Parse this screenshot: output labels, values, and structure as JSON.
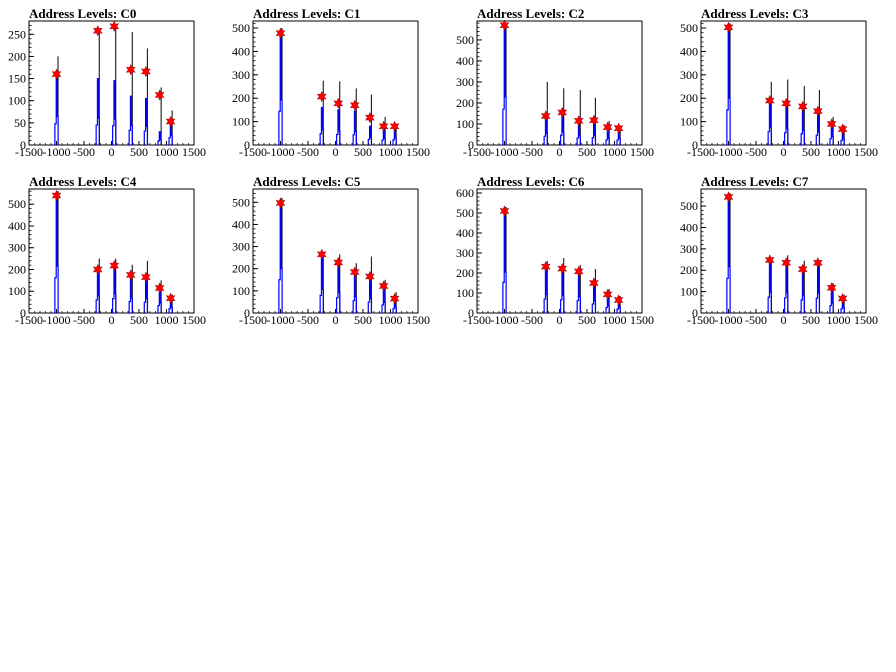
{
  "chart_data": [
    {
      "type": "histogram",
      "title": "Address Levels: C0",
      "xlim": [
        -1500,
        1500
      ],
      "ylim": [
        0,
        280
      ],
      "xticks": [
        -1500,
        -1000,
        -500,
        0,
        500,
        1000,
        1500
      ],
      "yticks": [
        0,
        50,
        100,
        150,
        200,
        250
      ],
      "peaks": [
        {
          "x": -1000,
          "top": 200,
          "body": 160,
          "star": 160
        },
        {
          "x": -250,
          "top": 260,
          "body": 150,
          "star": 258
        },
        {
          "x": 50,
          "top": 270,
          "body": 145,
          "star": 268
        },
        {
          "x": 350,
          "top": 255,
          "body": 110,
          "star": 170
        },
        {
          "x": 625,
          "top": 218,
          "body": 105,
          "star": 166
        },
        {
          "x": 875,
          "top": 130,
          "body": 30,
          "star": 113
        },
        {
          "x": 1075,
          "top": 78,
          "body": 55,
          "star": 53
        }
      ]
    },
    {
      "type": "histogram",
      "title": "Address Levels: C1",
      "xlim": [
        -1500,
        1500
      ],
      "ylim": [
        0,
        530
      ],
      "xticks": [
        -1500,
        -1000,
        -500,
        0,
        500,
        1000,
        1500
      ],
      "yticks": [
        0,
        100,
        200,
        300,
        400,
        500
      ],
      "peaks": [
        {
          "x": -1000,
          "top": 500,
          "body": 480,
          "star": 478
        },
        {
          "x": -250,
          "top": 275,
          "body": 160,
          "star": 207
        },
        {
          "x": 50,
          "top": 272,
          "body": 150,
          "star": 178
        },
        {
          "x": 350,
          "top": 242,
          "body": 145,
          "star": 170
        },
        {
          "x": 625,
          "top": 215,
          "body": 80,
          "star": 117
        },
        {
          "x": 875,
          "top": 120,
          "body": 70,
          "star": 80
        },
        {
          "x": 1075,
          "top": 90,
          "body": 75,
          "star": 80
        }
      ]
    },
    {
      "type": "histogram",
      "title": "Address Levels: C2",
      "xlim": [
        -1500,
        1500
      ],
      "ylim": [
        0,
        590
      ],
      "xticks": [
        -1500,
        -1000,
        -500,
        0,
        500,
        1000,
        1500
      ],
      "yticks": [
        0,
        100,
        200,
        300,
        400,
        500
      ],
      "peaks": [
        {
          "x": -1000,
          "top": 580,
          "body": 570,
          "star": 570
        },
        {
          "x": -250,
          "top": 300,
          "body": 140,
          "star": 138
        },
        {
          "x": 50,
          "top": 270,
          "body": 155,
          "star": 155
        },
        {
          "x": 350,
          "top": 262,
          "body": 110,
          "star": 115
        },
        {
          "x": 625,
          "top": 225,
          "body": 115,
          "star": 118
        },
        {
          "x": 875,
          "top": 115,
          "body": 80,
          "star": 85
        },
        {
          "x": 1075,
          "top": 90,
          "body": 78,
          "star": 80
        }
      ]
    },
    {
      "type": "histogram",
      "title": "Address Levels: C3",
      "xlim": [
        -1500,
        1500
      ],
      "ylim": [
        0,
        530
      ],
      "xticks": [
        -1500,
        -1000,
        -500,
        0,
        500,
        1000,
        1500
      ],
      "yticks": [
        0,
        100,
        200,
        300,
        400,
        500
      ],
      "peaks": [
        {
          "x": -1000,
          "top": 520,
          "body": 500,
          "star": 503
        },
        {
          "x": -250,
          "top": 270,
          "body": 190,
          "star": 190
        },
        {
          "x": 50,
          "top": 280,
          "body": 175,
          "star": 178
        },
        {
          "x": 350,
          "top": 252,
          "body": 160,
          "star": 165
        },
        {
          "x": 625,
          "top": 235,
          "body": 140,
          "star": 145
        },
        {
          "x": 875,
          "top": 120,
          "body": 90,
          "star": 90
        },
        {
          "x": 1075,
          "top": 85,
          "body": 65,
          "star": 68
        }
      ]
    },
    {
      "type": "histogram",
      "title": "Address Levels: C4",
      "xlim": [
        -1500,
        1500
      ],
      "ylim": [
        0,
        570
      ],
      "xticks": [
        -1500,
        -1000,
        -500,
        0,
        500,
        1000,
        1500
      ],
      "yticks": [
        0,
        100,
        200,
        300,
        400,
        500
      ],
      "peaks": [
        {
          "x": -1000,
          "top": 560,
          "body": 540,
          "star": 540
        },
        {
          "x": -250,
          "top": 250,
          "body": 200,
          "star": 200
        },
        {
          "x": 50,
          "top": 250,
          "body": 220,
          "star": 218
        },
        {
          "x": 350,
          "top": 222,
          "body": 175,
          "star": 175
        },
        {
          "x": 625,
          "top": 240,
          "body": 165,
          "star": 165
        },
        {
          "x": 875,
          "top": 150,
          "body": 115,
          "star": 115
        },
        {
          "x": 1075,
          "top": 85,
          "body": 65,
          "star": 68
        }
      ]
    },
    {
      "type": "histogram",
      "title": "Address Levels: C5",
      "xlim": [
        -1500,
        1500
      ],
      "ylim": [
        0,
        560
      ],
      "xticks": [
        -1500,
        -1000,
        -500,
        0,
        500,
        1000,
        1500
      ],
      "yticks": [
        0,
        100,
        200,
        300,
        400,
        500
      ],
      "peaks": [
        {
          "x": -1000,
          "top": 520,
          "body": 500,
          "star": 497
        },
        {
          "x": -250,
          "top": 275,
          "body": 265,
          "star": 265
        },
        {
          "x": 50,
          "top": 265,
          "body": 230,
          "star": 228
        },
        {
          "x": 350,
          "top": 225,
          "body": 185,
          "star": 185
        },
        {
          "x": 625,
          "top": 255,
          "body": 165,
          "star": 165
        },
        {
          "x": 875,
          "top": 150,
          "body": 120,
          "star": 122
        },
        {
          "x": 1075,
          "top": 95,
          "body": 65,
          "star": 65
        }
      ]
    },
    {
      "type": "histogram",
      "title": "Address Levels: C6",
      "xlim": [
        -1500,
        1500
      ],
      "ylim": [
        0,
        620
      ],
      "xticks": [
        -1500,
        -1000,
        -500,
        0,
        500,
        1000,
        1500
      ],
      "yticks": [
        0,
        100,
        200,
        300,
        400,
        500,
        600
      ],
      "peaks": [
        {
          "x": -1000,
          "top": 530,
          "body": 510,
          "star": 510
        },
        {
          "x": -250,
          "top": 260,
          "body": 230,
          "star": 232
        },
        {
          "x": 50,
          "top": 275,
          "body": 220,
          "star": 222
        },
        {
          "x": 350,
          "top": 240,
          "body": 205,
          "star": 208
        },
        {
          "x": 625,
          "top": 220,
          "body": 150,
          "star": 150
        },
        {
          "x": 875,
          "top": 120,
          "body": 90,
          "star": 93
        },
        {
          "x": 1075,
          "top": 85,
          "body": 65,
          "star": 65
        }
      ]
    },
    {
      "type": "histogram",
      "title": "Address Levels: C7",
      "xlim": [
        -1500,
        1500
      ],
      "ylim": [
        0,
        580
      ],
      "xticks": [
        -1500,
        -1000,
        -500,
        0,
        500,
        1000,
        1500
      ],
      "yticks": [
        0,
        100,
        200,
        300,
        400,
        500
      ],
      "peaks": [
        {
          "x": -1000,
          "top": 560,
          "body": 540,
          "star": 543
        },
        {
          "x": -250,
          "top": 260,
          "body": 245,
          "star": 248
        },
        {
          "x": 50,
          "top": 270,
          "body": 235,
          "star": 235
        },
        {
          "x": 350,
          "top": 245,
          "body": 205,
          "star": 205
        },
        {
          "x": 625,
          "top": 230,
          "body": 230,
          "star": 235
        },
        {
          "x": 875,
          "top": 140,
          "body": 115,
          "star": 118
        },
        {
          "x": 1075,
          "top": 85,
          "body": 65,
          "star": 68
        }
      ]
    }
  ],
  "colors": {
    "histogram_line": "#0000ff",
    "spike_line": "#000000",
    "peak_marker": "#ff0000",
    "axis": "#000000",
    "background": "#ffffff"
  }
}
